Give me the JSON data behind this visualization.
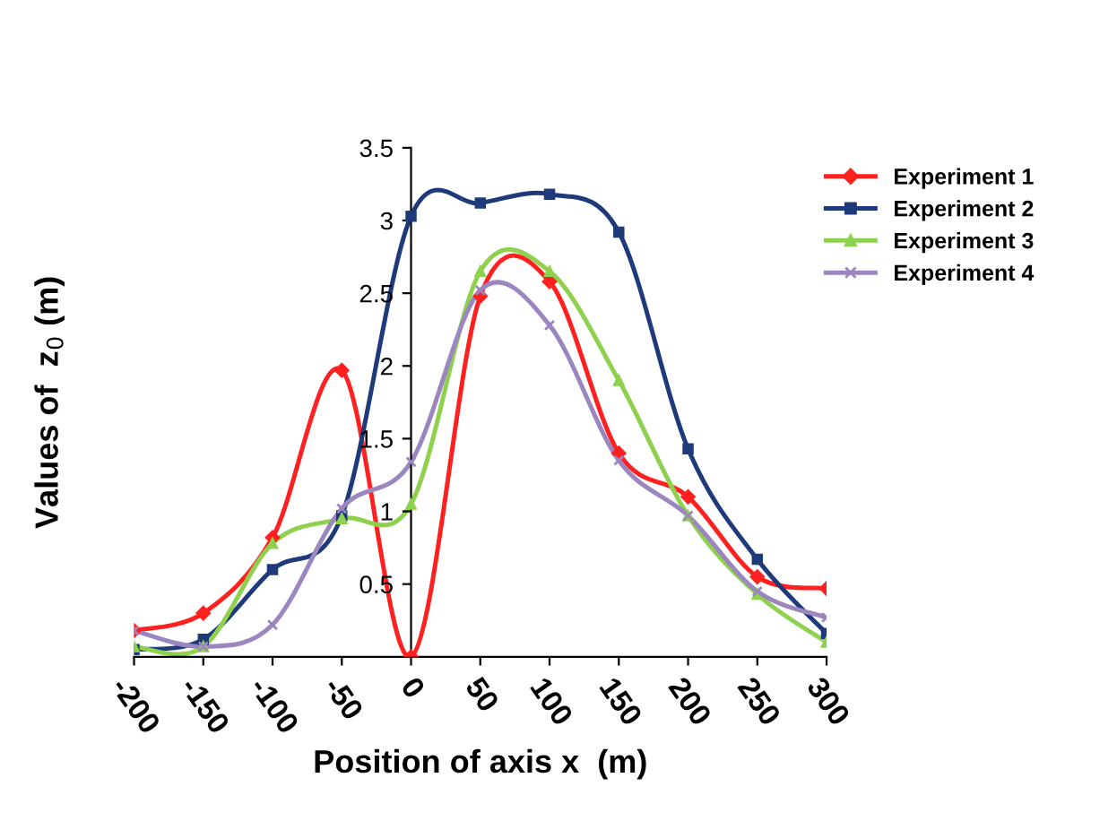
{
  "chart_data": {
    "type": "line",
    "xlabel": "Position of axis x  (m)",
    "ylabel": "Values of  z$_{0}$ (m)",
    "x": [
      -200,
      -150,
      -100,
      -50,
      0,
      50,
      100,
      150,
      200,
      250,
      300
    ],
    "xlim": [
      -200,
      300
    ],
    "xticks": [
      -200,
      -150,
      -100,
      -50,
      0,
      50,
      100,
      150,
      200,
      250,
      300
    ],
    "ylim": [
      0,
      3.5
    ],
    "yticks": [
      0.5,
      1,
      1.5,
      2,
      2.5,
      3,
      3.5
    ],
    "grid": false,
    "legend": "top right",
    "line_style": "solid",
    "series": [
      {
        "name": "Experiment 1",
        "color": "#ff2020",
        "marker": "diamond",
        "values": [
          0.18,
          0.3,
          0.82,
          1.97,
          0,
          2.48,
          2.58,
          1.4,
          1.1,
          0.55,
          0.47
        ]
      },
      {
        "name": "Experiment 2",
        "color": "#1f3a7a",
        "marker": "square",
        "values": [
          0.05,
          0.12,
          0.6,
          0.97,
          3.03,
          3.12,
          3.18,
          2.92,
          1.43,
          0.67,
          0.16
        ]
      },
      {
        "name": "Experiment 3",
        "color": "#8fd14f",
        "marker": "triangle",
        "values": [
          0.07,
          0.07,
          0.78,
          0.95,
          1.05,
          2.65,
          2.65,
          1.9,
          0.97,
          0.43,
          0.1
        ]
      },
      {
        "name": "Experiment 4",
        "color": "#9b86c0",
        "marker": "cross",
        "values": [
          0.18,
          0.07,
          0.22,
          1.02,
          1.34,
          2.52,
          2.28,
          1.35,
          0.97,
          0.45,
          0.27
        ]
      }
    ]
  }
}
